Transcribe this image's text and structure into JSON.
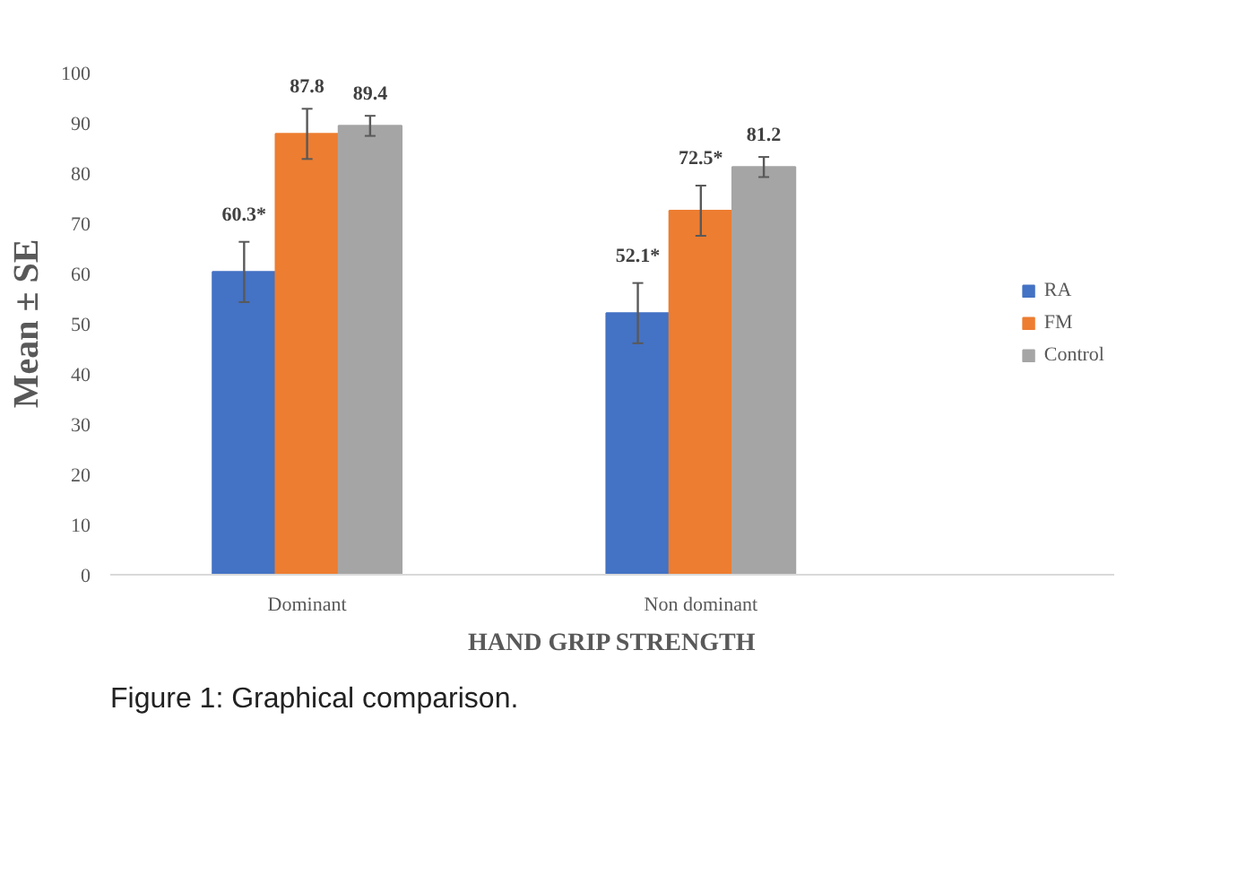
{
  "chart_data": {
    "type": "bar",
    "xlabel": "HAND GRIP STRENGTH",
    "ylabel": "Mean ± SE",
    "categories": [
      "Dominant",
      "Non dominant"
    ],
    "series": [
      {
        "name": "RA",
        "color": "#4472c4",
        "values": [
          60.3,
          52.1
        ],
        "errors": [
          6,
          6
        ],
        "value_labels": [
          "60.3*",
          "52.1*"
        ]
      },
      {
        "name": "FM",
        "color": "#ed7d31",
        "values": [
          87.8,
          72.5
        ],
        "errors": [
          5,
          5
        ],
        "value_labels": [
          "87.8",
          "72.5*"
        ]
      },
      {
        "name": "Control",
        "color": "#a5a5a5",
        "values": [
          89.4,
          81.2
        ],
        "errors": [
          2,
          2
        ],
        "value_labels": [
          "89.4",
          "81.2"
        ]
      }
    ],
    "ylim": [
      0,
      100
    ],
    "yticks": [
      0,
      10,
      20,
      30,
      40,
      50,
      60,
      70,
      80,
      90,
      100
    ],
    "grid": false,
    "legend": "right",
    "annotations": [
      "Figure 1: Graphical comparison."
    ]
  }
}
